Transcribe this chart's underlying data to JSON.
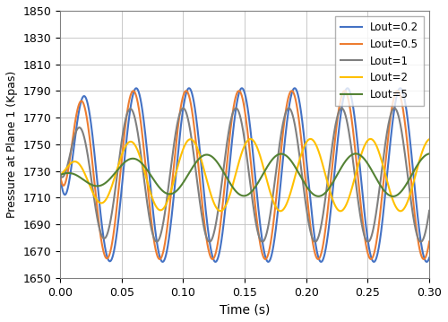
{
  "title": "",
  "xlabel": "Time (s)",
  "ylabel": "Pressure at Plane 1 (Kpas)",
  "xlim": [
    0,
    0.3
  ],
  "ylim": [
    1650,
    1850
  ],
  "yticks": [
    1650,
    1670,
    1690,
    1710,
    1730,
    1750,
    1770,
    1790,
    1810,
    1830,
    1850
  ],
  "xticks": [
    0,
    0.05,
    0.1,
    0.15,
    0.2,
    0.25,
    0.3
  ],
  "series": [
    {
      "label": "Lout=0.2",
      "color": "#4472C4",
      "mean": 1727,
      "amplitude": 65,
      "frequency": 23.3,
      "phase_rad": -1.2,
      "buildup_tau": 0.008
    },
    {
      "label": "Lout=0.5",
      "color": "#ED7D31",
      "mean": 1727,
      "amplitude": 63,
      "frequency": 23.3,
      "phase_rad": -0.85,
      "buildup_tau": 0.008
    },
    {
      "label": "Lout=1",
      "color": "#7F7F7F",
      "mean": 1727,
      "amplitude": 50,
      "frequency": 23.3,
      "phase_rad": -0.5,
      "buildup_tau": 0.012
    },
    {
      "label": "Lout=2",
      "color": "#FFC000",
      "mean": 1727,
      "amplitude": 27,
      "frequency": 20.5,
      "phase_rad": 0.5,
      "buildup_tau": 0.022
    },
    {
      "label": "Lout=5",
      "color": "#548235",
      "mean": 1727,
      "amplitude": 16,
      "frequency": 16.5,
      "phase_rad": 1.8,
      "buildup_tau": 0.04
    }
  ],
  "legend_loc": "upper right",
  "grid": true,
  "background_color": "#FFFFFF",
  "figsize": [
    5.0,
    3.59
  ],
  "dpi": 100
}
